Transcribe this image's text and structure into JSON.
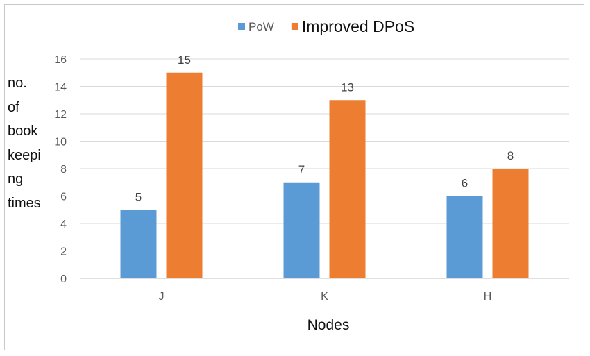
{
  "chart_data": {
    "type": "bar",
    "categories": [
      "J",
      "K",
      "H"
    ],
    "series": [
      {
        "name": "PoW",
        "values": [
          5,
          7,
          6
        ],
        "color": "#5B9BD5"
      },
      {
        "name": "Improved DPoS",
        "values": [
          15,
          13,
          8
        ],
        "color": "#ED7D31"
      }
    ],
    "yticks": [
      0,
      2,
      4,
      6,
      8,
      10,
      12,
      14,
      16
    ],
    "ylim": [
      0,
      16
    ],
    "xlabel": "Nodes",
    "ylabel_lines": [
      "no.",
      "of",
      "book",
      "keepi",
      "ng",
      "times"
    ],
    "grid": true,
    "legend_position": "top-center"
  }
}
